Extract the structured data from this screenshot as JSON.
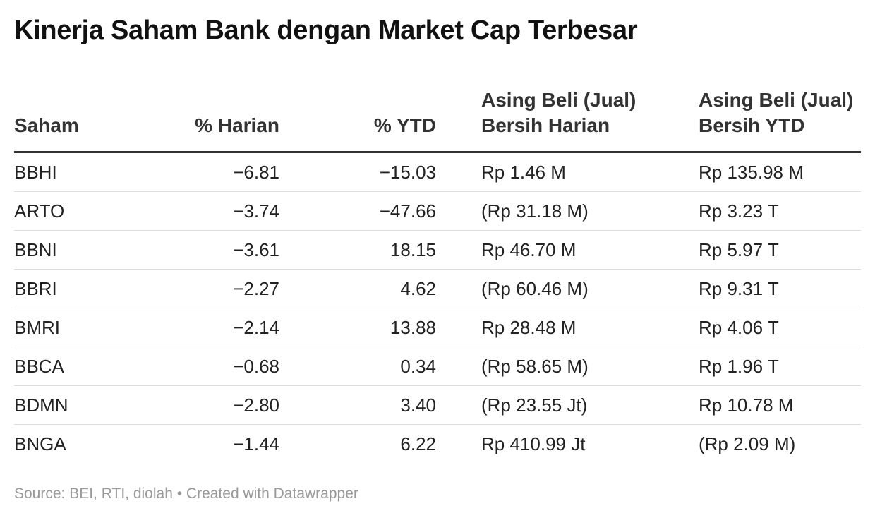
{
  "title": "Kinerja Saham Bank dengan Market Cap Terbesar",
  "chart_data": {
    "type": "table",
    "title": "Kinerja Saham Bank dengan Market Cap Terbesar",
    "columns": [
      {
        "lines": [
          "Saham"
        ]
      },
      {
        "lines": [
          "% Harian"
        ]
      },
      {
        "lines": [
          "% YTD"
        ]
      },
      {
        "lines": [
          "Asing Beli (Jual)",
          "Bersih Harian"
        ]
      },
      {
        "lines": [
          "Asing Beli (Jual)",
          "Bersih YTD"
        ]
      }
    ],
    "rows": [
      [
        "BBHI",
        "−6.81",
        "−15.03",
        "Rp 1.46 M",
        "Rp 135.98 M"
      ],
      [
        "ARTO",
        "−3.74",
        "−47.66",
        "(Rp 31.18 M)",
        "Rp 3.23 T"
      ],
      [
        "BBNI",
        "−3.61",
        "18.15",
        "Rp 46.70 M",
        "Rp 5.97 T"
      ],
      [
        "BBRI",
        "−2.27",
        "4.62",
        "(Rp 60.46 M)",
        "Rp 9.31 T"
      ],
      [
        "BMRI",
        "−2.14",
        "13.88",
        "Rp 28.48 M",
        "Rp 4.06 T"
      ],
      [
        "BBCA",
        "−0.68",
        "0.34",
        "(Rp 58.65 M)",
        "Rp 1.96 T"
      ],
      [
        "BDMN",
        "−2.80",
        "3.40",
        "(Rp 23.55 Jt)",
        "Rp 10.78 M"
      ],
      [
        "BNGA",
        "−1.44",
        "6.22",
        "Rp 410.99 Jt",
        "(Rp 2.09 M)"
      ]
    ]
  },
  "footer": {
    "source": "Source: BEI, RTI, diolah • Created with Datawrapper"
  }
}
